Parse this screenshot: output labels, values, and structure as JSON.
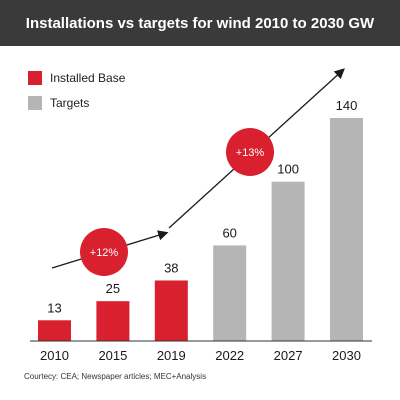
{
  "title": "Installations vs targets for wind 2010 to 2030 GW",
  "legend": [
    {
      "label": "Installed Base",
      "color": "#d9202e"
    },
    {
      "label": "Targets",
      "color": "#b5b5b5"
    }
  ],
  "chart_data": {
    "type": "bar",
    "title": "Installations vs targets for wind 2010 to 2030 GW",
    "xlabel": "",
    "ylabel": "",
    "ylim": [
      0,
      140
    ],
    "grid": false,
    "legend_position": "top-left",
    "categories": [
      "2010",
      "2015",
      "2019",
      "2022",
      "2027",
      "2030"
    ],
    "values": [
      13,
      25,
      38,
      60,
      100,
      140
    ],
    "series_by_category": [
      "Installed Base",
      "Installed Base",
      "Installed Base",
      "Targets",
      "Targets",
      "Targets"
    ],
    "data_labels": [
      "13",
      "25",
      "38",
      "60",
      "100",
      "140"
    ],
    "annotations": [
      {
        "text": "+12%",
        "color": "#d9202e"
      },
      {
        "text": "+13%",
        "color": "#d9202e"
      }
    ]
  },
  "source": "Courtecy: CEA; Newspaper articles; MEC+Analysis"
}
